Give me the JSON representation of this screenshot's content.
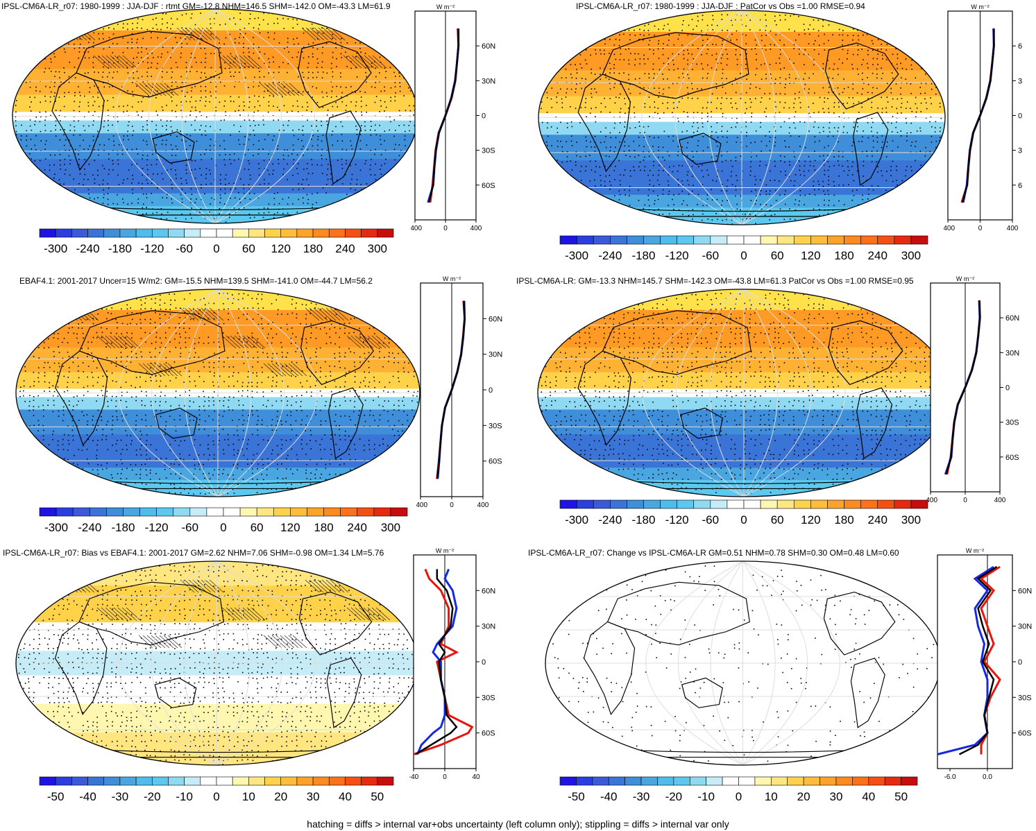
{
  "panels": [
    {
      "title": "IPSL-CM6A-LR_r07: 1980-1999 : JJA-DJF : rtmt GM=-12.8 NHM=146.5 SHM=-142.0 OM=-43.3 LM=61.9",
      "units": "W m⁻²",
      "lat_ticks": [
        "60N",
        "30N",
        "0",
        "30S",
        "60S"
      ],
      "x_ticks": [
        "-400",
        "0",
        "400"
      ],
      "cbar_labels": [
        "-300",
        "-240",
        "-180",
        "-120",
        "-60",
        "0",
        "60",
        "120",
        "180",
        "240",
        "300"
      ]
    },
    {
      "title": "IPSL-CM6A-LR_r07: 1980-1999 : JJA-DJF : PatCor vs Obs =1.00 RMSE=0.94",
      "units": "W m⁻²",
      "lat_ticks": [
        "6",
        "3",
        "0",
        "3",
        "6"
      ],
      "x_ticks": [
        "-400",
        "0",
        "400"
      ],
      "cbar_labels": [
        "-300",
        "-240",
        "-180",
        "-120",
        "-60",
        "0",
        "60",
        "120",
        "180",
        "240",
        "300"
      ]
    },
    {
      "title": "EBAF4.1: 2001-2017 Uncer=15 W/m2: GM=-15.5 NHM=139.5 SHM=-141.0 OM=-44.7 LM=56.2",
      "units": "W m⁻²",
      "lat_ticks": [
        "60N",
        "30N",
        "0",
        "30S",
        "60S"
      ],
      "x_ticks": [
        "-400",
        "0",
        "400"
      ],
      "cbar_labels": [
        "-300",
        "-240",
        "-180",
        "-120",
        "-60",
        "0",
        "60",
        "120",
        "180",
        "240",
        "300"
      ]
    },
    {
      "title": "IPSL-CM6A-LR: GM=-13.3 NHM=145.7 SHM=-142.3 OM=-43.8 LM=61.3 PatCor vs Obs =1.00 RMSE=0.95",
      "units": "W m⁻²",
      "lat_ticks": [
        "60N",
        "30N",
        "0",
        "30S",
        "60S"
      ],
      "x_ticks": [
        "-400",
        "0",
        "400"
      ],
      "cbar_labels": [
        "-300",
        "-240",
        "-180",
        "-120",
        "-60",
        "0",
        "60",
        "120",
        "180",
        "240",
        "300"
      ]
    },
    {
      "title": "IPSL-CM6A-LR_r07: Bias vs EBAF4.1: 2001-2017 GM=2.62 NHM=7.06 SHM=-0.98 OM=1.34 LM=5.76",
      "units": "W m⁻²",
      "lat_ticks": [
        "60N",
        "30N",
        "0",
        "30S",
        "60S"
      ],
      "x_ticks": [
        "-40",
        "0",
        "40"
      ],
      "cbar_labels": [
        "-50",
        "-40",
        "-30",
        "-20",
        "-10",
        "0",
        "10",
        "20",
        "30",
        "40",
        "50"
      ]
    },
    {
      "title": "IPSL-CM6A-LR_r07: Change vs IPSL-CM6A-LR GM=0.51 NHM=0.78 SHM=0.30 OM=0.48 LM=0.60",
      "units": "W m⁻²",
      "lat_ticks": [
        "60N",
        "30N",
        "0",
        "30S",
        "60S"
      ],
      "x_ticks": [
        "-6.0",
        "0.0"
      ],
      "cbar_labels": [
        "-50",
        "-40",
        "-30",
        "-20",
        "-10",
        "0",
        "10",
        "20",
        "30",
        "40",
        "50"
      ]
    }
  ],
  "colors": {
    "scale": [
      "#1e14e6",
      "#2b3fe0",
      "#3a5ad8",
      "#3a74d6",
      "#3e8ed9",
      "#4aa6e0",
      "#4fbdeb",
      "#5cc8f0",
      "#8fd9f2",
      "#c6ecf7",
      "#ffffff",
      "#ffffff",
      "#fff6b0",
      "#ffe680",
      "#ffd24a",
      "#ffbd3a",
      "#ffa22a",
      "#ff8a1f",
      "#ff701a",
      "#f55014",
      "#e62a10",
      "#c80d0d"
    ],
    "profile_model": "#e8140c",
    "profile_obs": "#1428e6",
    "profile_mean": "#000000"
  },
  "footer": "hatching = diffs > internal var+obs uncertainty (left column only); stippling = diffs > internal var only",
  "chart_data": [
    {
      "type": "heatmap",
      "title": "IPSL-CM6A-LR_r07: 1980-1999 : JJA-DJF : rtmt GM=-12.8 NHM=146.5 SHM=-142.0 OM=-43.3 LM=61.9",
      "field": "seasonal radiative difference map",
      "range": [
        -300,
        300
      ],
      "zonal_profile": {
        "lat": [
          75,
          60,
          45,
          30,
          15,
          0,
          -15,
          -30,
          -45,
          -60,
          -75
        ],
        "model": [
          160,
          170,
          150,
          130,
          80,
          0,
          -90,
          -130,
          -150,
          -170,
          -200
        ],
        "obs": [
          170,
          170,
          150,
          125,
          75,
          0,
          -85,
          -125,
          -145,
          -160,
          -230
        ]
      },
      "profile_xlim": [
        -400,
        400
      ],
      "global_means": {
        "GM": -12.8,
        "NHM": 146.5,
        "SHM": -142.0,
        "OM": -43.3,
        "LM": 61.9
      }
    },
    {
      "type": "heatmap",
      "title": "IPSL-CM6A-LR_r07: 1980-1999 : JJA-DJF : PatCor vs Obs =1.00 RMSE=0.94",
      "range": [
        -300,
        300
      ],
      "zonal_profile": {
        "lat": [
          75,
          60,
          45,
          30,
          15,
          0,
          -15,
          -30,
          -45,
          -60,
          -75
        ],
        "model": [
          170,
          170,
          150,
          125,
          75,
          0,
          -85,
          -125,
          -145,
          -160,
          -230
        ],
        "obs": [
          165,
          170,
          150,
          128,
          78,
          0,
          -88,
          -128,
          -148,
          -165,
          -210
        ]
      },
      "profile_xlim": [
        -400,
        400
      ],
      "stats": {
        "PatCor": 1.0,
        "RMSE": 0.94
      }
    },
    {
      "type": "heatmap",
      "title": "EBAF4.1: 2001-2017 Uncer=15 W/m2: GM=-15.5 NHM=139.5 SHM=-141.0 OM=-44.7 LM=56.2",
      "range": [
        -300,
        300
      ],
      "zonal_profile": {
        "lat": [
          75,
          60,
          45,
          30,
          15,
          0,
          -15,
          -30,
          -45,
          -60,
          -75
        ],
        "model": [
          150,
          165,
          145,
          120,
          70,
          0,
          -85,
          -125,
          -145,
          -165,
          -190
        ],
        "obs": [
          160,
          165,
          148,
          122,
          72,
          0,
          -85,
          -125,
          -145,
          -160,
          -180
        ]
      },
      "profile_xlim": [
        -400,
        400
      ],
      "global_means": {
        "GM": -15.5,
        "NHM": 139.5,
        "SHM": -141.0,
        "OM": -44.7,
        "LM": 56.2
      },
      "uncertainty": "15 W/m2"
    },
    {
      "type": "heatmap",
      "title": "IPSL-CM6A-LR: GM=-13.3 NHM=145.7 SHM=-142.3 OM=-43.8 LM=61.3 PatCor vs Obs =1.00 RMSE=0.95",
      "range": [
        -300,
        300
      ],
      "zonal_profile": {
        "lat": [
          75,
          60,
          45,
          30,
          15,
          0,
          -15,
          -30,
          -45,
          -60,
          -75
        ],
        "model": [
          165,
          170,
          150,
          128,
          78,
          0,
          -88,
          -128,
          -148,
          -168,
          -210
        ],
        "obs": [
          160,
          168,
          150,
          126,
          76,
          0,
          -86,
          -126,
          -146,
          -160,
          -230
        ]
      },
      "profile_xlim": [
        -400,
        400
      ],
      "global_means": {
        "GM": -13.3,
        "NHM": 145.7,
        "SHM": -142.3,
        "OM": -43.8,
        "LM": 61.3
      },
      "stats": {
        "PatCor": 1.0,
        "RMSE": 0.95
      }
    },
    {
      "type": "heatmap",
      "title": "IPSL-CM6A-LR_r07: Bias vs EBAF4.1: 2001-2017 GM=2.62 NHM=7.06 SHM=-0.98 OM=1.34 LM=5.76",
      "range": [
        -50,
        50
      ],
      "zonal_profile": {
        "lat": [
          78,
          70,
          60,
          45,
          30,
          15,
          8,
          0,
          -15,
          -30,
          -45,
          -55,
          -60,
          -70,
          -78
        ],
        "model": [
          -25,
          -20,
          -5,
          5,
          5,
          -5,
          15,
          -10,
          -5,
          0,
          5,
          35,
          30,
          -5,
          -40
        ],
        "obs": [
          5,
          0,
          10,
          15,
          10,
          -10,
          -15,
          -5,
          -5,
          0,
          0,
          -5,
          -15,
          -30,
          -35
        ]
      },
      "profile_xlim": [
        -40,
        40
      ],
      "global_means": {
        "GM": 2.62,
        "NHM": 7.06,
        "SHM": -0.98,
        "OM": 1.34,
        "LM": 5.76
      }
    },
    {
      "type": "heatmap",
      "title": "IPSL-CM6A-LR_r07: Change vs IPSL-CM6A-LR GM=0.51 NHM=0.78 SHM=0.30 OM=0.48 LM=0.60",
      "range": [
        -50,
        50
      ],
      "zonal_profile": {
        "lat": [
          80,
          70,
          60,
          45,
          30,
          15,
          0,
          -15,
          -30,
          -45,
          -60,
          -70,
          -78
        ],
        "model": [
          2,
          -1,
          1,
          -1,
          0,
          1,
          -0.5,
          2,
          0.5,
          -0.5,
          0,
          -1,
          -1
        ],
        "obs": [
          1,
          -2,
          0,
          -2,
          -1.5,
          -0.5,
          -1,
          0,
          0,
          -0.5,
          0,
          -2,
          -8
        ]
      },
      "profile_xlim": [
        -8,
        4
      ],
      "global_means": {
        "GM": 0.51,
        "NHM": 0.78,
        "SHM": 0.3,
        "OM": 0.48,
        "LM": 0.6
      }
    }
  ]
}
